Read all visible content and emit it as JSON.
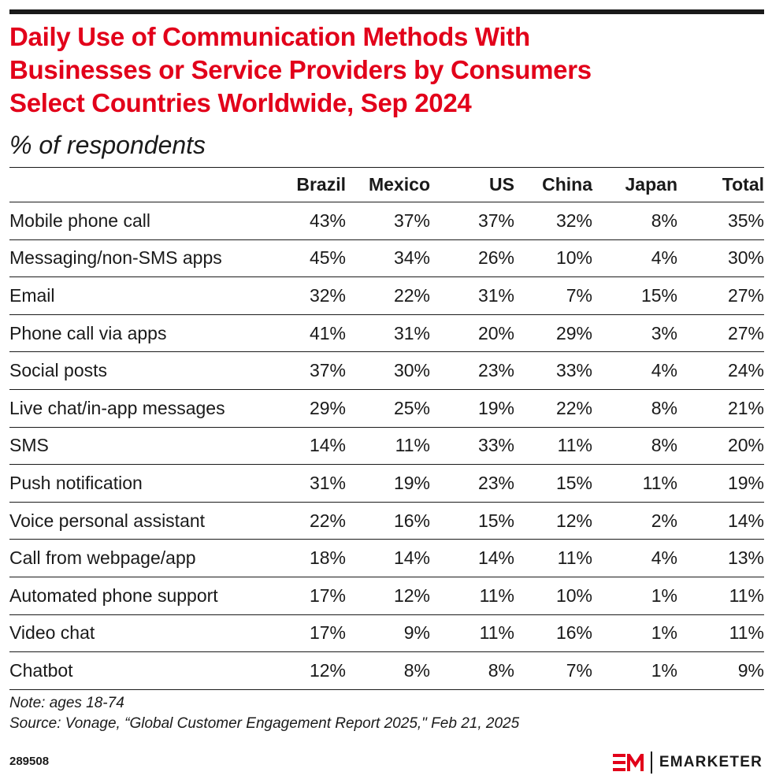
{
  "chart_data": {
    "type": "table",
    "title": "Daily Use of Communication Methods With Businesses or Service Providers by Consumers Select Countries Worldwide, Sep 2024",
    "subtitle": "% of respondents",
    "columns": [
      "",
      "Brazil",
      "Mexico",
      "US",
      "China",
      "Japan",
      "Total"
    ],
    "rows": [
      {
        "label": "Mobile phone call",
        "values": [
          "43%",
          "37%",
          "37%",
          "32%",
          "8%",
          "35%"
        ]
      },
      {
        "label": "Messaging/non-SMS apps",
        "values": [
          "45%",
          "34%",
          "26%",
          "10%",
          "4%",
          "30%"
        ]
      },
      {
        "label": "Email",
        "values": [
          "32%",
          "22%",
          "31%",
          "7%",
          "15%",
          "27%"
        ]
      },
      {
        "label": "Phone call via apps",
        "values": [
          "41%",
          "31%",
          "20%",
          "29%",
          "3%",
          "27%"
        ]
      },
      {
        "label": "Social posts",
        "values": [
          "37%",
          "30%",
          "23%",
          "33%",
          "4%",
          "24%"
        ]
      },
      {
        "label": "Live chat/in-app messages",
        "values": [
          "29%",
          "25%",
          "19%",
          "22%",
          "8%",
          "21%"
        ]
      },
      {
        "label": "SMS",
        "values": [
          "14%",
          "11%",
          "33%",
          "11%",
          "8%",
          "20%"
        ]
      },
      {
        "label": "Push notification",
        "values": [
          "31%",
          "19%",
          "23%",
          "15%",
          "11%",
          "19%"
        ]
      },
      {
        "label": "Voice personal assistant",
        "values": [
          "22%",
          "16%",
          "15%",
          "12%",
          "2%",
          "14%"
        ]
      },
      {
        "label": "Call from webpage/app",
        "values": [
          "18%",
          "14%",
          "14%",
          "11%",
          "4%",
          "13%"
        ]
      },
      {
        "label": "Automated phone support",
        "values": [
          "17%",
          "12%",
          "11%",
          "10%",
          "1%",
          "11%"
        ]
      },
      {
        "label": "Video chat",
        "values": [
          "17%",
          "9%",
          "11%",
          "16%",
          "1%",
          "11%"
        ]
      },
      {
        "label": "Chatbot",
        "values": [
          "12%",
          "8%",
          "8%",
          "7%",
          "1%",
          "9%"
        ]
      }
    ]
  },
  "title_lines": [
    "Daily Use of Communication Methods With",
    "Businesses or Service Providers by Consumers",
    "Select Countries Worldwide, Sep 2024"
  ],
  "note": "Note: ages 18-74",
  "source": "Source: Vonage, “Global Customer Engagement Report 2025,\" Feb 21, 2025",
  "footer": {
    "chart_id": "289508",
    "brand": "EMARKETER",
    "logo_icon": "em-logo-icon"
  },
  "colors": {
    "title": "#e2001a",
    "text": "#1a1a1a",
    "logo_accent": "#e2001a"
  }
}
